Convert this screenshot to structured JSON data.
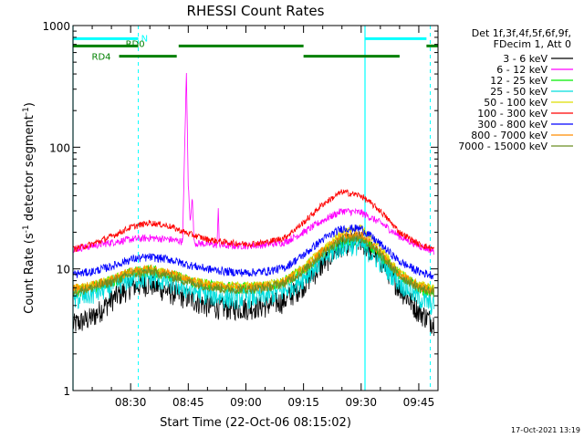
{
  "chart_data": {
    "type": "line",
    "title": "RHESSI Count Rates",
    "xlabel": "Start Time (22-Oct-06 08:15:02)",
    "ylabel_main": "Count Rate (s",
    "ylabel_sup": "-1",
    "ylabel_tail": " detector segment",
    "ylabel_end": ")",
    "yscale": "log",
    "ylim": [
      1,
      1000
    ],
    "xlim": [
      "08:15",
      "09:50"
    ],
    "x_minutes_from": "08:15",
    "xlim_minutes": [
      0,
      95
    ],
    "y_ticks": [
      "1",
      "10",
      "100",
      "1000"
    ],
    "x_ticks": [
      {
        "label": "08:30",
        "m": 15
      },
      {
        "label": "08:45",
        "m": 30
      },
      {
        "label": "09:00",
        "m": 45
      },
      {
        "label": "09:15",
        "m": 60
      },
      {
        "label": "09:30",
        "m": 75
      },
      {
        "label": "09:45",
        "m": 90
      }
    ],
    "legend_header": [
      "Det 1f,3f,4f,5f,6f,9f,",
      "FDecim 1, Att 0"
    ],
    "legend_placement": "right",
    "x": [
      0,
      5,
      10,
      15,
      20,
      25,
      30,
      35,
      40,
      45,
      50,
      55,
      60,
      65,
      70,
      75,
      80,
      85,
      90,
      94
    ],
    "series": [
      {
        "name": "3 - 6 keV",
        "color": "#000000",
        "values": [
          3.5,
          4.0,
          5.6,
          7.2,
          7.6,
          6.5,
          5.8,
          5.0,
          4.8,
          4.8,
          5.0,
          5.5,
          7.5,
          11,
          16,
          17,
          12,
          7.0,
          4.5,
          3.6
        ]
      },
      {
        "name": "6 - 12 keV",
        "color": "#ff00ff",
        "values": [
          14.5,
          15.5,
          16.5,
          17.5,
          18.0,
          17.5,
          16.5,
          16.0,
          15.5,
          15.5,
          15.8,
          16.5,
          20,
          25,
          30,
          29,
          24,
          18.5,
          15.5,
          14
        ]
      },
      {
        "name": "12 - 25 keV",
        "color": "#00ee00",
        "values": [
          6.5,
          7.0,
          8.0,
          9.2,
          9.8,
          9.0,
          8.0,
          7.4,
          7.0,
          7.0,
          7.2,
          7.8,
          10,
          13.5,
          17,
          17.5,
          13,
          9.0,
          7.0,
          6.5
        ]
      },
      {
        "name": "25 - 50 keV",
        "color": "#00dddd",
        "values": [
          5.5,
          6.2,
          7.2,
          8.3,
          8.5,
          7.8,
          6.8,
          6.2,
          5.8,
          5.8,
          6.0,
          6.6,
          8.5,
          12,
          15.5,
          16,
          11.5,
          7.8,
          5.8,
          5.0
        ]
      },
      {
        "name": "50 - 100 keV",
        "color": "#dddd00",
        "values": [
          7.0,
          7.5,
          8.3,
          9.5,
          10.0,
          9.3,
          8.2,
          7.6,
          7.3,
          7.3,
          7.5,
          8.0,
          10.5,
          14.5,
          20,
          22,
          15,
          9.5,
          7.5,
          7.0
        ]
      },
      {
        "name": "100 - 300 keV",
        "color": "#ff0000",
        "values": [
          14.5,
          16,
          18.5,
          22,
          24,
          22.5,
          19.5,
          17.5,
          16.5,
          16.0,
          16.5,
          18.0,
          24,
          34,
          43,
          40,
          30,
          20,
          16,
          14.5
        ]
      },
      {
        "name": "300 - 800 keV",
        "color": "#0000ff",
        "values": [
          9.0,
          9.5,
          10.5,
          12.0,
          12.5,
          12.0,
          10.8,
          10.0,
          9.5,
          9.3,
          9.5,
          10.2,
          13,
          17.5,
          21.5,
          21.5,
          16,
          11.5,
          9.5,
          8.8
        ]
      },
      {
        "name": "800 - 7000 keV",
        "color": "#ff8c00",
        "values": [
          6.8,
          7.3,
          8.2,
          9.5,
          10.0,
          9.3,
          8.0,
          7.4,
          7.0,
          7.0,
          7.2,
          7.8,
          10,
          14,
          18.5,
          19,
          13.5,
          9.0,
          7.2,
          6.6
        ]
      },
      {
        "name": "7000 - 15000 keV",
        "color": "#6b8e23",
        "values": [
          6.5,
          7.0,
          7.8,
          9.0,
          9.5,
          8.8,
          7.8,
          7.2,
          6.8,
          6.8,
          7.0,
          7.6,
          9.6,
          13.5,
          17.5,
          18,
          13,
          8.8,
          7.0,
          6.4
        ]
      }
    ],
    "spike": {
      "series": "6 - 12 keV",
      "x": [
        28.5,
        29,
        29.5,
        30,
        30.5,
        31,
        31.5
      ],
      "values": [
        16,
        80,
        420,
        50,
        24,
        40,
        17
      ]
    },
    "spike2": {
      "series": "6 - 12 keV",
      "x": [
        37.5,
        37.8,
        38.1
      ],
      "values": [
        16,
        30,
        16
      ]
    },
    "status_bars": [
      {
        "label": "N",
        "color": "#00ffff",
        "level": 780,
        "segments": [
          [
            0,
            17
          ],
          [
            76,
            92
          ]
        ]
      },
      {
        "label": "RD0",
        "color": "#008000",
        "level": 680,
        "segments": [
          [
            0,
            17
          ],
          [
            27.5,
            60
          ],
          [
            92,
            95
          ]
        ]
      },
      {
        "label": "RD4",
        "color": "#008000",
        "level": 560,
        "segments": [
          [
            12,
            27
          ],
          [
            60,
            85
          ]
        ]
      }
    ],
    "vlines_solid": [
      0,
      76
    ],
    "vlines_dashed": [
      17,
      93
    ]
  },
  "footer": {
    "timestamp": "17-Oct-2021 13:19"
  }
}
